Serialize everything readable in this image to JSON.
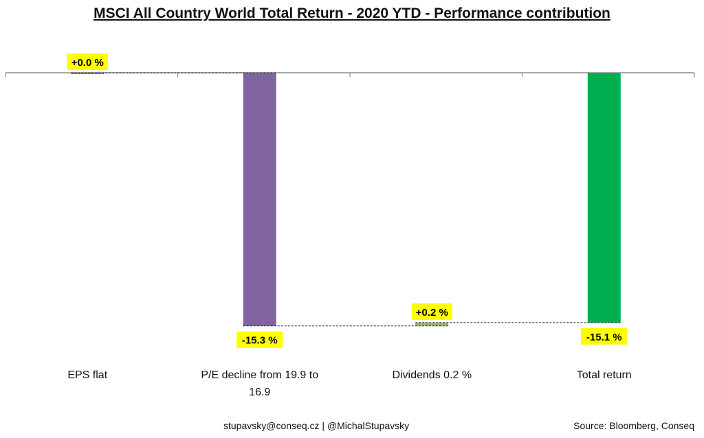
{
  "title": "MSCI All Country World Total Return - 2020 YTD - Performance contribution",
  "footer": {
    "credit": "stupavsky@conseq.cz  | @MichalStupavsky",
    "source": "Source: Bloomberg, Conseq"
  },
  "chart_data": {
    "type": "bar",
    "subtype": "waterfall",
    "categories": [
      "EPS flat",
      "P/E decline from 19.9 to 16.9",
      "Dividends 0.2 %",
      "Total return"
    ],
    "category_label_lines": [
      [
        "EPS flat"
      ],
      [
        "P/E decline from 19.9 to",
        "16.9"
      ],
      [
        "Dividends 0.2 %"
      ],
      [
        "Total return"
      ]
    ],
    "values": [
      0.0,
      -15.3,
      0.2,
      -15.1
    ],
    "data_labels": [
      "+0.0 %",
      "-15.3 %",
      "+0.2 %",
      "-15.1 %"
    ],
    "colors": [
      "#808080",
      "#8064a2",
      "#9bbb59",
      "#00b050"
    ],
    "label_background": "#ffff00",
    "ylim": [
      -16.2,
      0.6
    ],
    "grid": false,
    "connectors": "dashed"
  }
}
